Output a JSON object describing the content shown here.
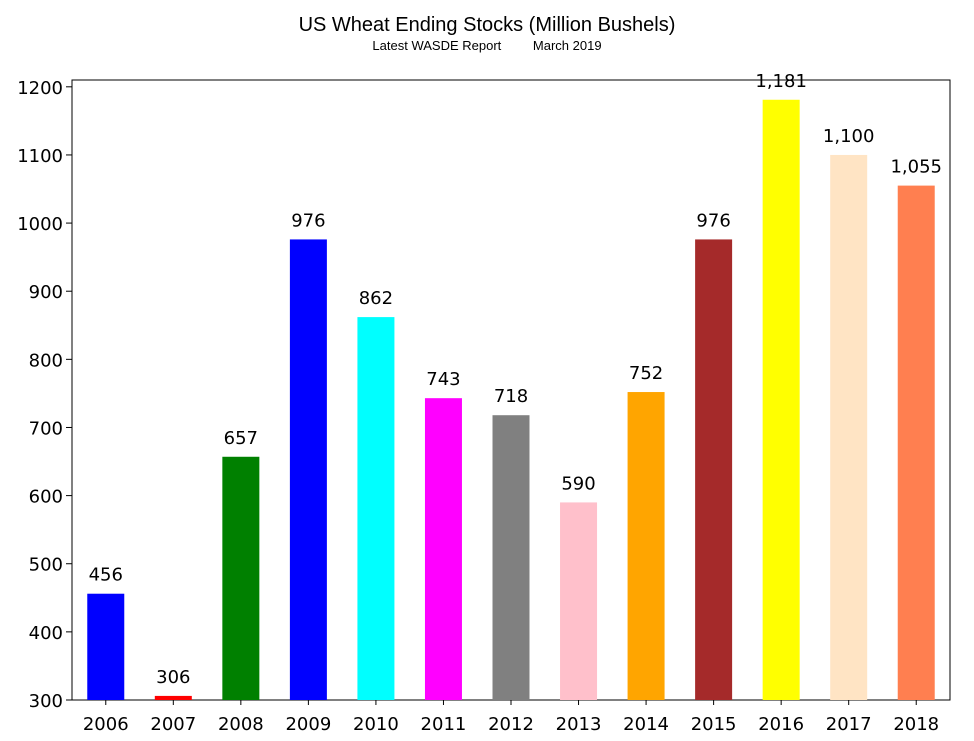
{
  "chart_data": {
    "type": "bar",
    "title": "US Wheat Ending Stocks (Million Bushels)",
    "subtitle_left": "Latest WASDE Report",
    "subtitle_right": "March 2019",
    "categories": [
      "2006",
      "2007",
      "2008",
      "2009",
      "2010",
      "2011",
      "2012",
      "2013",
      "2014",
      "2015",
      "2016",
      "2017",
      "2018"
    ],
    "values": [
      456,
      306,
      657,
      976,
      862,
      743,
      718,
      590,
      752,
      976,
      1181,
      1100,
      1055
    ],
    "data_labels": [
      "456",
      "306",
      "657",
      "976",
      "862",
      "743",
      "718",
      "590",
      "752",
      "976",
      "1,181",
      "1,100",
      "1,055"
    ],
    "colors": [
      "#0000FF",
      "#FF0000",
      "#008000",
      "#0000FF",
      "#00FFFF",
      "#FF00FF",
      "#808080",
      "#FFC0CB",
      "#FFA500",
      "#A52A2A",
      "#FFFF00",
      "#FFE4C4",
      "#FF7F50"
    ],
    "ylim": [
      300,
      1210
    ],
    "yticks": [
      300,
      400,
      500,
      600,
      700,
      800,
      900,
      1000,
      1100,
      1200
    ],
    "grid": false,
    "legend": "none"
  }
}
